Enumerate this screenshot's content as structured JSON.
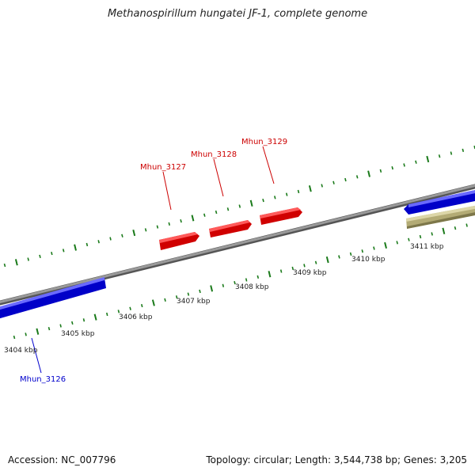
{
  "title": "Methanospirillum hungatei JF-1, complete genome",
  "footer": {
    "accession": "Accession: NC_007796",
    "summary": "Topology: circular; Length: 3,544,738 bp; Genes: 3,205"
  },
  "colors": {
    "backbone": "#808080",
    "forward_gene": "#ff0000",
    "reverse_gene": "#0000ff",
    "other_feature": "#bdb583",
    "tick": "#1a7a1a",
    "forward_label": "#cc0000",
    "reverse_label": "#0000cc"
  },
  "ruler_labels": [
    "3404 kbp",
    "3405 kbp",
    "3406 kbp",
    "3407 kbp",
    "3408 kbp",
    "3409 kbp",
    "3410 kbp",
    "3411 kbp"
  ],
  "genes": [
    {
      "name": "Mhun_3126",
      "strand": "reverse"
    },
    {
      "name": "Mhun_3127",
      "strand": "forward"
    },
    {
      "name": "Mhun_3128",
      "strand": "forward"
    },
    {
      "name": "Mhun_3129",
      "strand": "forward"
    }
  ]
}
